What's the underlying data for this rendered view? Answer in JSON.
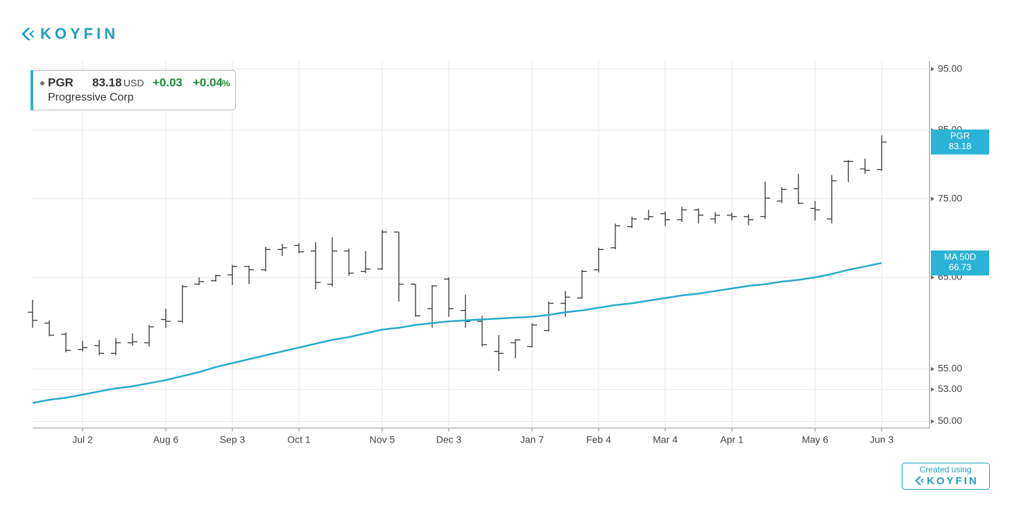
{
  "brand": {
    "logo": "KOYFIN",
    "created_using": "Created using",
    "created_logo": "KOYFIN"
  },
  "legend": {
    "ticker": "PGR",
    "currency": "USD",
    "change": "+0.03",
    "change_percent": {
      "number": "+0.04",
      "unit": "%"
    },
    "company": "Progressive Corp"
  },
  "chart_data": {
    "type": "ohlc",
    "log_scale": true,
    "grid": true,
    "categories": [
      null,
      null,
      null,
      "Jul 2",
      null,
      null,
      null,
      null,
      "Aug 6",
      null,
      null,
      null,
      "Sep 3",
      null,
      null,
      null,
      "Oct 1",
      null,
      null,
      null,
      null,
      "Nov 5",
      null,
      null,
      null,
      "Dec 3",
      null,
      null,
      null,
      null,
      "Jan 7",
      null,
      null,
      null,
      "Feb 4",
      null,
      null,
      null,
      "Mar 4",
      null,
      null,
      null,
      "Apr 1",
      null,
      null,
      null,
      null,
      "May 6",
      null,
      null,
      null,
      "Jun 3"
    ],
    "ylim": [
      49.4,
      96.4
    ],
    "yticks": [
      {
        "value": 50,
        "label": "50.00"
      },
      {
        "value": 53,
        "label": "53.00"
      },
      {
        "value": 55,
        "label": "55.00"
      },
      {
        "value": 65,
        "label": "65.00"
      },
      {
        "value": 75,
        "label": "75.00"
      },
      {
        "value": 85,
        "label": "85.00"
      },
      {
        "value": 95,
        "label": "95.00"
      }
    ],
    "series": [
      {
        "name": "PGR",
        "color": "#333333",
        "tag_color": "#2bb3d6",
        "open": [
          61,
          59.8,
          58.6,
          57.0,
          57.4,
          56.6,
          57.7,
          57.7,
          60.2,
          60,
          64.2,
          64.6,
          65.3,
          66.3,
          65.9,
          68.4,
          68.9,
          68.2,
          64.2,
          68.2,
          65.7,
          66,
          70.6,
          64.2,
          61.4,
          64.8,
          61.2,
          60,
          56.8,
          57.7,
          57.3,
          59,
          62,
          62.6,
          65.9,
          68.6,
          71.3,
          72.3,
          73,
          72.2,
          73.5,
          72.3,
          72.8,
          72.6,
          72.6,
          74.7,
          76.4,
          73.7,
          72.3,
          80.3,
          79.2,
          79.1
        ],
        "high": [
          62.4,
          60.1,
          58.8,
          57.9,
          58,
          58.2,
          58.7,
          59.6,
          61.4,
          64.1,
          65,
          65.3,
          66.5,
          66.4,
          68.7,
          69.1,
          69.2,
          69.3,
          69.9,
          68.5,
          68.2,
          70.9,
          70.6,
          64.2,
          64.1,
          65,
          63,
          60.6,
          58.5,
          58.1,
          59.8,
          62.2,
          63.4,
          65.9,
          68.6,
          71.7,
          72.6,
          73.5,
          73.3,
          73.9,
          73.7,
          73.2,
          73.1,
          72.9,
          77.4,
          76.6,
          78.5,
          74.7,
          78.3,
          80.5,
          80.7,
          84.2
        ],
        "low": [
          59.3,
          58.4,
          56.7,
          56.8,
          56.4,
          56.4,
          57.4,
          57.3,
          59.3,
          59.8,
          64.1,
          64.5,
          64.1,
          64.2,
          65.7,
          67.6,
          67.9,
          63.6,
          63.9,
          65.2,
          65.5,
          65.9,
          62.2,
          60.5,
          59.3,
          60.5,
          59.3,
          57.3,
          54.8,
          56.1,
          57.2,
          58.9,
          60.5,
          62.5,
          65.6,
          68.4,
          71.1,
          72.1,
          71.4,
          71.9,
          71.7,
          71.7,
          72.1,
          71.5,
          72.3,
          74.4,
          74.3,
          72.1,
          71.7,
          77.3,
          78.5,
          78.9
        ],
        "close": [
          60.1,
          58.5,
          56.9,
          57.2,
          56.6,
          57.7,
          57.8,
          59.4,
          60.0,
          63.9,
          64.5,
          65.2,
          66.3,
          65.9,
          68.4,
          68.6,
          68.1,
          64.4,
          68.2,
          65.5,
          66.0,
          70.6,
          64.2,
          60.6,
          64.0,
          61.4,
          60.0,
          57.5,
          56.6,
          58.0,
          59.6,
          62.0,
          62.7,
          65.7,
          68.4,
          71.4,
          72.3,
          72.6,
          72.2,
          73.5,
          72.8,
          72.8,
          72.6,
          72.2,
          75.1,
          76.3,
          74.4,
          73.5,
          77.5,
          80.3,
          79.0,
          83.18
        ]
      },
      {
        "name": "MA 50D",
        "type": "line",
        "color": "#27a9cc",
        "tag_color": "#2bb3d6",
        "values": [
          51.7,
          52.0,
          52.2,
          52.5,
          52.8,
          53.1,
          53.3,
          53.6,
          53.9,
          54.3,
          54.7,
          55.2,
          55.6,
          56.0,
          56.4,
          56.8,
          57.2,
          57.6,
          58.0,
          58.3,
          58.7,
          59.1,
          59.3,
          59.6,
          59.8,
          60.0,
          60.1,
          60.2,
          60.3,
          60.4,
          60.5,
          60.7,
          61.0,
          61.2,
          61.5,
          61.8,
          62.0,
          62.3,
          62.6,
          62.9,
          63.1,
          63.4,
          63.7,
          64.0,
          64.2,
          64.5,
          64.7,
          65.0,
          65.4,
          65.9,
          66.3,
          66.73
        ]
      }
    ]
  }
}
